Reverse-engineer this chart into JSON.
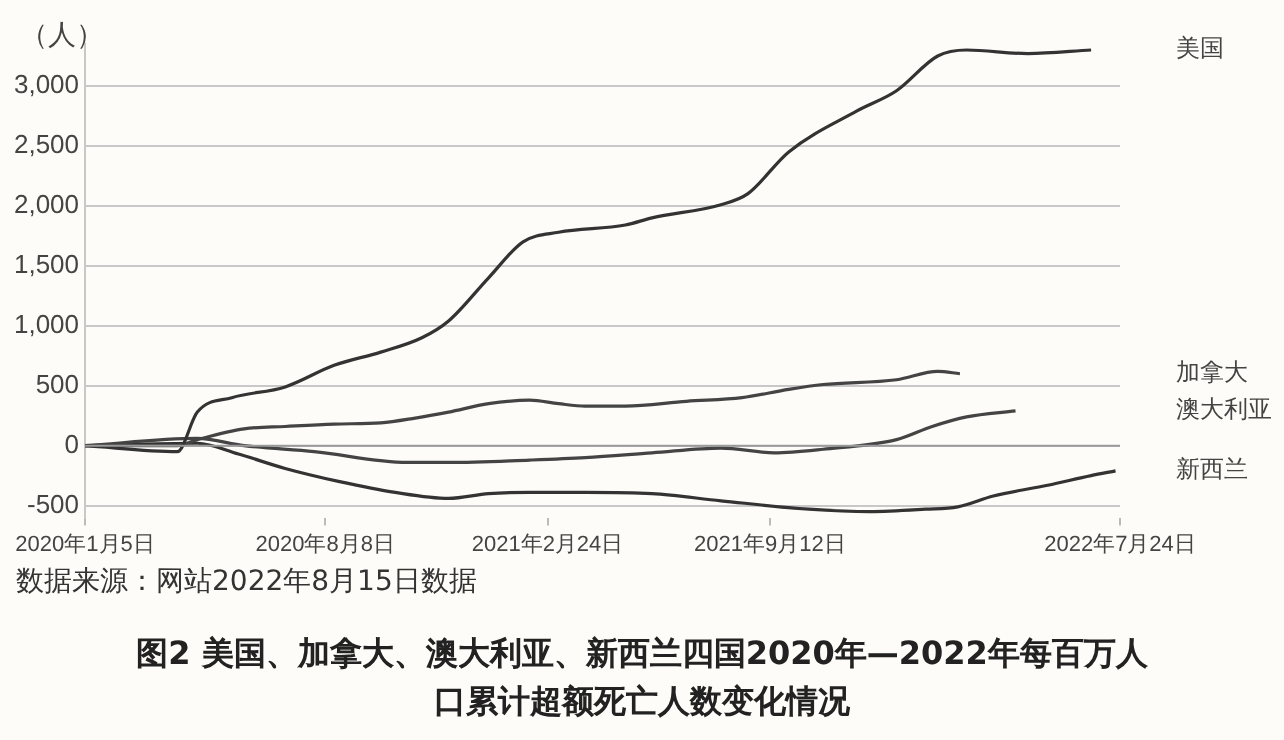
{
  "chart_data": {
    "type": "line",
    "title": "图2 美国、加拿大、澳大利亚、新西兰四国2020年—2022年每百万人口累计超额死亡人数变化情况",
    "ylabel": "（人）",
    "annotations": [
      "数据来源：网站2022年8月15日数据"
    ],
    "xlim": [
      "2020-01-05",
      "2022-07-24"
    ],
    "xticks": [
      {
        "value": "2020-01-05",
        "label": "2020年1月5日"
      },
      {
        "value": "2020-08-08",
        "label": "2020年8月8日"
      },
      {
        "value": "2021-02-24",
        "label": "2021年2月24日"
      },
      {
        "value": "2021-09-12",
        "label": "2021年9月12日"
      },
      {
        "value": "2022-07-24",
        "label": "2022年7月24日"
      }
    ],
    "ylim": [
      -600,
      3350
    ],
    "yticks": [
      -500,
      0,
      500,
      {
        "value": 1000,
        "label": "1,000"
      },
      {
        "value": 1500,
        "label": "1,500"
      },
      {
        "value": 2000,
        "label": "2,000"
      },
      {
        "value": 2500,
        "label": "2,500"
      },
      {
        "value": 3000,
        "label": "3,000"
      }
    ],
    "grid": "y",
    "marker": "none",
    "line_style": "solid",
    "legend": false,
    "ref_lines": [
      {
        "axis": "y",
        "value": 0,
        "color": "#9a9a9a"
      }
    ],
    "series": [
      {
        "name": "美国",
        "color": "#333333",
        "x": [
          "2020-01-05",
          "2020-03-28",
          "2020-04-15",
          "2020-05-16",
          "2020-07-03",
          "2020-08-16",
          "2020-09-27",
          "2020-11-03",
          "2020-11-27",
          "2021-01-02",
          "2021-02-02",
          "2021-03-06",
          "2021-05-05",
          "2021-05-29",
          "2021-07-30",
          "2021-08-23",
          "2021-09-29",
          "2021-11-29",
          "2022-01-04",
          "2022-02-10",
          "2022-03-08",
          "2022-05-02",
          "2022-06-28"
        ],
        "values": [
          0,
          -50,
          280,
          400,
          490,
          670,
          780,
          900,
          1040,
          1400,
          1700,
          1780,
          1840,
          1900,
          2010,
          2100,
          2450,
          2790,
          2960,
          3250,
          3300,
          3270,
          3300
        ]
      },
      {
        "name": "加拿大",
        "color": "#444444",
        "x": [
          "2020-01-05",
          "2020-03-28",
          "2020-04-15",
          "2020-05-27",
          "2020-07-03",
          "2020-08-16",
          "2020-09-27",
          "2020-10-28",
          "2020-11-27",
          "2021-01-02",
          "2021-02-08",
          "2021-03-06",
          "2021-03-30",
          "2021-05-05",
          "2021-06-29",
          "2021-08-18",
          "2021-09-29",
          "2021-10-30",
          "2022-01-04",
          "2022-02-10",
          "2022-03-02"
        ],
        "values": [
          0,
          0,
          50,
          140,
          160,
          180,
          190,
          230,
          280,
          350,
          380,
          350,
          330,
          330,
          370,
          400,
          470,
          510,
          550,
          620,
          600
        ]
      },
      {
        "name": "澳大利亚",
        "color": "#444444",
        "x": [
          "2020-01-05",
          "2020-04-15",
          "2020-05-27",
          "2020-07-29",
          "2020-10-21",
          "2020-11-27",
          "2021-02-08",
          "2021-03-30",
          "2021-05-29",
          "2021-07-30",
          "2021-09-16",
          "2021-10-30",
          "2022-01-04",
          "2022-02-05",
          "2022-03-08",
          "2022-04-21"
        ],
        "values": [
          0,
          60,
          0,
          -50,
          -140,
          -140,
          -120,
          -100,
          -60,
          -20,
          -60,
          -30,
          50,
          160,
          240,
          290
        ]
      },
      {
        "name": "新西兰",
        "color": "#333333",
        "x": [
          "2020-01-05",
          "2020-04-15",
          "2020-05-22",
          "2020-07-03",
          "2020-08-21",
          "2020-10-10",
          "2020-11-27",
          "2021-01-02",
          "2021-02-08",
          "2021-03-30",
          "2021-05-29",
          "2021-07-30",
          "2021-10-17",
          "2021-12-11",
          "2022-01-30",
          "2022-02-28",
          "2022-04-01",
          "2022-05-20",
          "2022-06-28",
          "2022-07-20"
        ],
        "values": [
          0,
          20,
          -70,
          -190,
          -300,
          -390,
          -440,
          -400,
          -390,
          -390,
          -400,
          -460,
          -530,
          -550,
          -530,
          -510,
          -420,
          -330,
          -250,
          -210
        ]
      }
    ]
  }
}
